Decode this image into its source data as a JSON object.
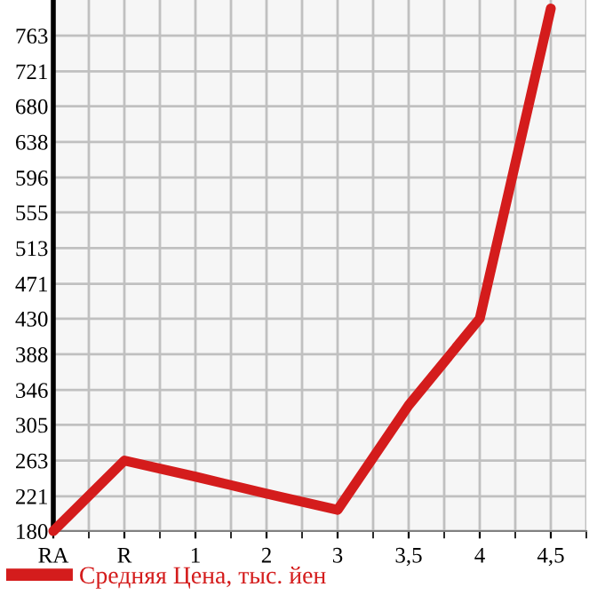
{
  "chart_data": {
    "type": "line",
    "categories": [
      "RA",
      "R",
      "1",
      "2",
      "3",
      "3,5",
      "4",
      "4,5"
    ],
    "series": [
      {
        "name": "Средняя Цена, тыс. йен",
        "color": "#d41c1c",
        "values": [
          180,
          263,
          244,
          224,
          205,
          328,
          430,
          795
        ]
      }
    ],
    "ylim": [
      180,
      805
    ],
    "yticks": [
      180,
      221,
      263,
      305,
      346,
      388,
      430,
      471,
      513,
      555,
      596,
      638,
      680,
      721,
      763
    ],
    "grid": true,
    "legend": "bottom",
    "marker": "none",
    "line_style": "solid"
  }
}
